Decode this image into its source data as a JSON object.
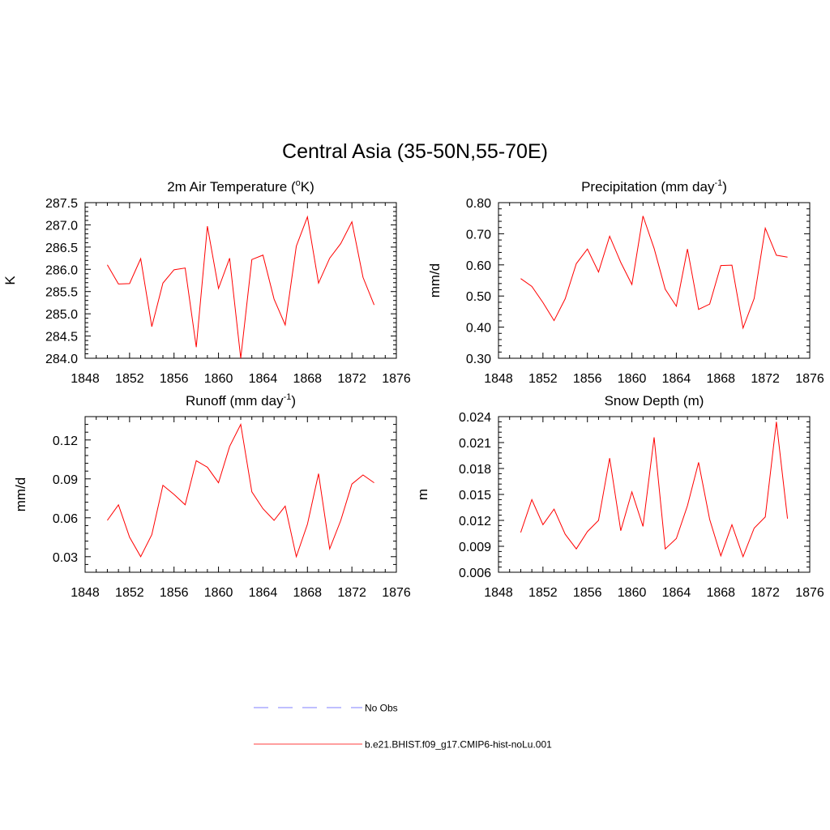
{
  "figure": {
    "title": "Central Asia (35-50N,55-70E)"
  },
  "legend": {
    "items": [
      {
        "label": "No Obs",
        "color": "#9999ff",
        "style": "dashed"
      },
      {
        "label": "b.e21.BHIST.f09_g17.CMIP6-hist-noLu.001",
        "color": "#ff6666",
        "style": "solid"
      }
    ]
  },
  "chart_data": [
    {
      "type": "line",
      "title": "2m Air Temperature (",
      "title_sup": "o",
      "title_tail": "K)",
      "ylabel": "K",
      "xlim": [
        1848,
        1876
      ],
      "ylim": [
        284.0,
        287.5
      ],
      "xticks": [
        1848,
        1852,
        1856,
        1860,
        1864,
        1868,
        1872,
        1876
      ],
      "xminor": 1,
      "yticks": [
        "284.0",
        "284.5",
        "285.0",
        "285.5",
        "286.0",
        "286.5",
        "287.0",
        "287.5"
      ],
      "yminor": 0.1,
      "series": [
        {
          "color": "#ff0000",
          "x": [
            1850,
            1851,
            1852,
            1853,
            1854,
            1855,
            1856,
            1857,
            1858,
            1859,
            1860,
            1861,
            1862,
            1863,
            1864,
            1865,
            1866,
            1867,
            1868,
            1869,
            1870,
            1871,
            1872,
            1873,
            1874
          ],
          "y": [
            286.1,
            285.67,
            285.68,
            286.24,
            284.71,
            285.69,
            285.99,
            286.03,
            284.25,
            286.97,
            285.57,
            286.25,
            284.0,
            286.22,
            286.32,
            285.33,
            284.75,
            286.52,
            287.18,
            285.69,
            286.25,
            286.58,
            287.07,
            285.82,
            285.2
          ]
        }
      ]
    },
    {
      "type": "line",
      "title": "Precipitation (mm day",
      "title_sup": "-1",
      "title_tail": ")",
      "ylabel": "mm/d",
      "xlim": [
        1848,
        1876
      ],
      "ylim": [
        0.3,
        0.8
      ],
      "xticks": [
        1848,
        1852,
        1856,
        1860,
        1864,
        1868,
        1872,
        1876
      ],
      "xminor": 1,
      "yticks": [
        "0.30",
        "0.40",
        "0.50",
        "0.60",
        "0.70",
        "0.80"
      ],
      "yminor": 0.02,
      "series": [
        {
          "color": "#ff0000",
          "x": [
            1850,
            1851,
            1852,
            1853,
            1854,
            1855,
            1856,
            1857,
            1858,
            1859,
            1860,
            1861,
            1862,
            1863,
            1864,
            1865,
            1866,
            1867,
            1868,
            1869,
            1870,
            1871,
            1872,
            1873,
            1874
          ],
          "y": [
            0.556,
            0.531,
            0.479,
            0.421,
            0.491,
            0.604,
            0.651,
            0.577,
            0.692,
            0.608,
            0.537,
            0.757,
            0.653,
            0.522,
            0.467,
            0.651,
            0.457,
            0.474,
            0.598,
            0.599,
            0.397,
            0.492,
            0.718,
            0.631,
            0.625
          ]
        }
      ]
    },
    {
      "type": "line",
      "title": "Runoff (mm day",
      "title_sup": "-1",
      "title_tail": ")",
      "ylabel": "mm/d",
      "xlim": [
        1848,
        1876
      ],
      "ylim": [
        0.018,
        0.138
      ],
      "xticks": [
        1848,
        1852,
        1856,
        1860,
        1864,
        1868,
        1872,
        1876
      ],
      "xminor": 1,
      "ytickvals": [
        0.03,
        0.06,
        0.09,
        0.12
      ],
      "yticks": [
        "0.03",
        "0.06",
        "0.09",
        "0.12"
      ],
      "yminor": 0.006,
      "series": [
        {
          "color": "#ff0000",
          "x": [
            1850,
            1851,
            1852,
            1853,
            1854,
            1855,
            1856,
            1857,
            1858,
            1859,
            1860,
            1861,
            1862,
            1863,
            1864,
            1865,
            1866,
            1867,
            1868,
            1869,
            1870,
            1871,
            1872,
            1873,
            1874
          ],
          "y": [
            0.058,
            0.07,
            0.045,
            0.03,
            0.047,
            0.085,
            0.078,
            0.07,
            0.104,
            0.099,
            0.087,
            0.115,
            0.132,
            0.08,
            0.067,
            0.058,
            0.069,
            0.03,
            0.055,
            0.094,
            0.036,
            0.058,
            0.086,
            0.093,
            0.087
          ]
        }
      ]
    },
    {
      "type": "line",
      "title": "Snow Depth (m)",
      "title_sup": "",
      "title_tail": "",
      "ylabel": "m",
      "xlim": [
        1848,
        1876
      ],
      "ylim": [
        0.006,
        0.024
      ],
      "xticks": [
        1848,
        1852,
        1856,
        1860,
        1864,
        1868,
        1872,
        1876
      ],
      "xminor": 1,
      "yticks": [
        "0.006",
        "0.009",
        "0.012",
        "0.015",
        "0.018",
        "0.021",
        "0.024"
      ],
      "yminor": 0.0006,
      "series": [
        {
          "color": "#ff0000",
          "x": [
            1850,
            1851,
            1852,
            1853,
            1854,
            1855,
            1856,
            1857,
            1858,
            1859,
            1860,
            1861,
            1862,
            1863,
            1864,
            1865,
            1866,
            1867,
            1868,
            1869,
            1870,
            1871,
            1872,
            1873,
            1874
          ],
          "y": [
            0.0106,
            0.0144,
            0.0115,
            0.0133,
            0.0104,
            0.0087,
            0.0107,
            0.012,
            0.0192,
            0.0108,
            0.0153,
            0.0113,
            0.0216,
            0.0087,
            0.0099,
            0.0137,
            0.0187,
            0.0121,
            0.0079,
            0.0115,
            0.0078,
            0.0111,
            0.0124,
            0.0234,
            0.0122
          ]
        }
      ]
    }
  ]
}
